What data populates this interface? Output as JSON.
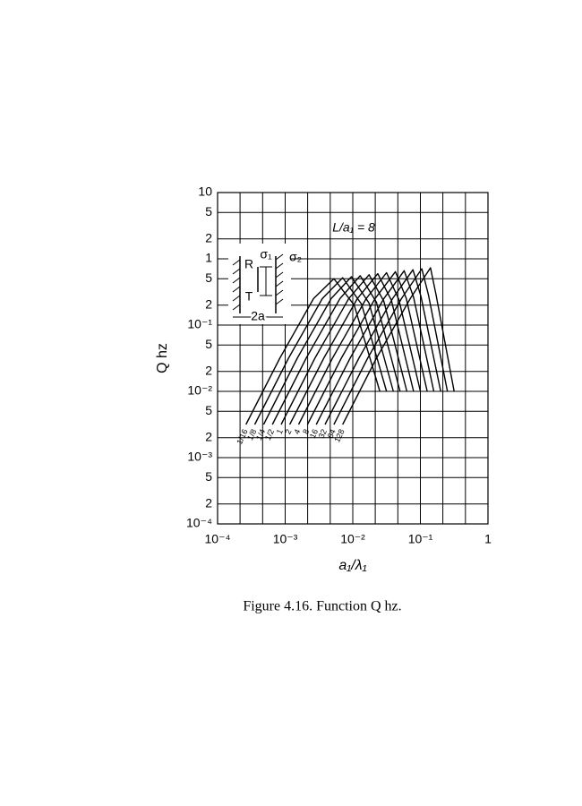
{
  "chart_data": {
    "type": "line",
    "xlabel": "a₁/λ₁",
    "ylabel": "Q hz",
    "caption": "Figure 4.16. Function Q hz.",
    "annotation": "L/a₁ = 8",
    "inset_labels": [
      "R",
      "T",
      "σ₁",
      "σ₂",
      "2a"
    ],
    "xscale": "log",
    "yscale": "log",
    "grid": true,
    "color": "#000000",
    "xlim": [
      0.0001,
      1
    ],
    "ylim": [
      0.0001,
      10
    ],
    "xticks": [
      {
        "value": 0.0001,
        "label": "10⁻⁴"
      },
      {
        "value": 0.001,
        "label": "10⁻³"
      },
      {
        "value": 0.01,
        "label": "10⁻²"
      },
      {
        "value": 0.1,
        "label": "10⁻¹"
      },
      1
    ],
    "xgrid": [
      0.000215,
      0.000464,
      0.00215,
      0.00464,
      0.0215,
      0.0464,
      0.215,
      0.464
    ],
    "yticks": [
      10,
      5,
      2,
      1,
      {
        "value": 0.1,
        "label": "10⁻¹"
      },
      {
        "value": 0.5,
        "label": "5"
      },
      {
        "value": 0.2,
        "label": "2"
      },
      {
        "value": 0.01,
        "label": "10⁻²"
      },
      {
        "value": 0.05,
        "label": "5"
      },
      {
        "value": 0.02,
        "label": "2"
      },
      {
        "value": 0.001,
        "label": "10⁻³"
      },
      {
        "value": 0.005,
        "label": "5"
      },
      {
        "value": 0.002,
        "label": "2"
      },
      {
        "value": 0.0001,
        "label": "10⁻⁴"
      },
      {
        "value": 0.0005,
        "label": "5"
      },
      {
        "value": 0.0002,
        "label": "2"
      }
    ],
    "series": [
      {
        "name": "1/16",
        "x": [
          0.000263,
          0.000832,
          0.00263,
          0.00525,
          0.0105,
          0.0251
        ],
        "values": [
          0.00316,
          0.0316,
          0.251,
          0.501,
          0.2,
          0.01
        ]
      },
      {
        "name": "1/8",
        "x": [
          0.000355,
          0.00112,
          0.00355,
          0.00708,
          0.0135,
          0.0316
        ],
        "values": [
          0.00316,
          0.0316,
          0.251,
          0.519,
          0.207,
          0.01
        ]
      },
      {
        "name": "1/4",
        "x": [
          0.000479,
          0.00151,
          0.00479,
          0.00955,
          0.0174,
          0.0398
        ],
        "values": [
          0.00316,
          0.0316,
          0.251,
          0.537,
          0.214,
          0.01
        ]
      },
      {
        "name": "1/2",
        "x": [
          0.000646,
          0.00204,
          0.00646,
          0.0129,
          0.0224,
          0.0501
        ],
        "values": [
          0.00316,
          0.0316,
          0.251,
          0.556,
          0.221,
          0.01
        ]
      },
      {
        "name": "1",
        "x": [
          0.000871,
          0.00275,
          0.00871,
          0.0174,
          0.0288,
          0.0631
        ],
        "values": [
          0.00316,
          0.0316,
          0.251,
          0.575,
          0.229,
          0.01
        ]
      },
      {
        "name": "2",
        "x": [
          0.00117,
          0.00372,
          0.0117,
          0.0234,
          0.0372,
          0.0794
        ],
        "values": [
          0.00316,
          0.0316,
          0.251,
          0.596,
          0.237,
          0.01
        ]
      },
      {
        "name": "4",
        "x": [
          0.00158,
          0.00501,
          0.0158,
          0.0316,
          0.0479,
          0.1
        ],
        "values": [
          0.00316,
          0.0316,
          0.251,
          0.617,
          0.245,
          0.01
        ]
      },
      {
        "name": "8",
        "x": [
          0.00214,
          0.00676,
          0.0214,
          0.0427,
          0.0617,
          0.126
        ],
        "values": [
          0.00316,
          0.0316,
          0.251,
          0.638,
          0.254,
          0.01
        ]
      },
      {
        "name": "16",
        "x": [
          0.00288,
          0.00912,
          0.0288,
          0.0575,
          0.0794,
          0.158
        ],
        "values": [
          0.00316,
          0.0316,
          0.251,
          0.661,
          0.263,
          0.01
        ]
      },
      {
        "name": "32",
        "x": [
          0.00389,
          0.0123,
          0.0389,
          0.0776,
          0.102,
          0.2
        ],
        "values": [
          0.00316,
          0.0316,
          0.251,
          0.684,
          0.272,
          0.01
        ]
      },
      {
        "name": "64",
        "x": [
          0.00525,
          0.0166,
          0.0525,
          0.105,
          0.132,
          0.251
        ],
        "values": [
          0.00316,
          0.0316,
          0.251,
          0.708,
          0.282,
          0.01
        ]
      },
      {
        "name": "128",
        "x": [
          0.00708,
          0.0224,
          0.0708,
          0.141,
          0.17,
          0.316
        ],
        "values": [
          0.00316,
          0.0316,
          0.251,
          0.733,
          0.292,
          0.01
        ]
      }
    ]
  }
}
